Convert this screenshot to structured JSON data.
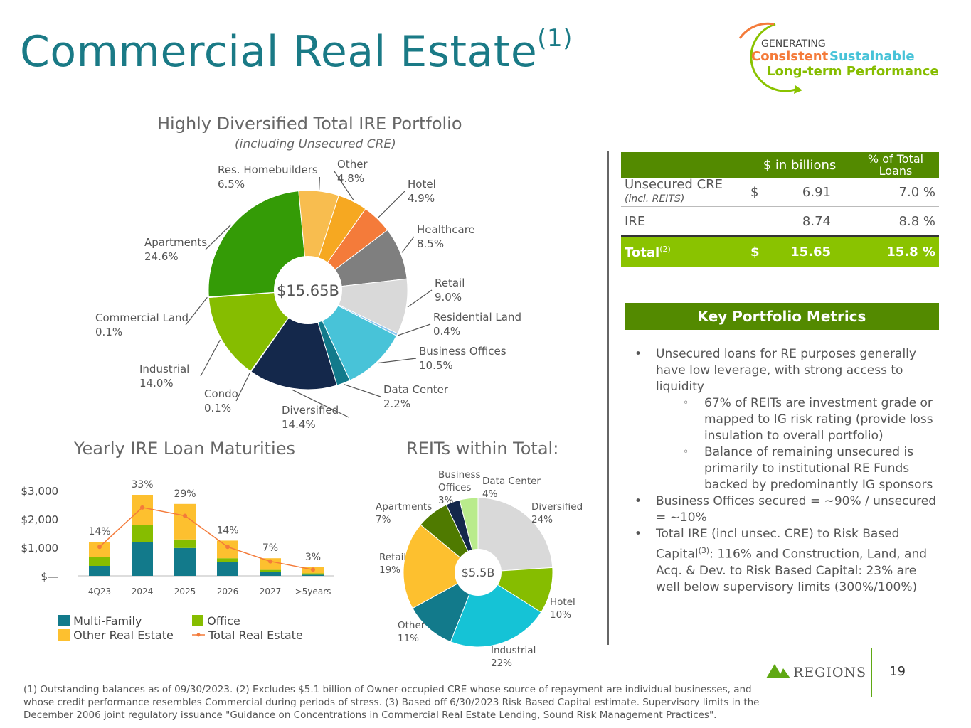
{
  "header": {
    "title": "Commercial Real Estate",
    "title_sup": "(1)",
    "tagline": {
      "line1": "GENERATING",
      "consistent": "Consistent",
      "sustainable": "Sustainable",
      "line3": "Long-term Performance"
    }
  },
  "pie_section": {
    "title": "Highly Diversified Total IRE Portfolio",
    "subtitle": "(including Unsecured CRE)"
  },
  "bar_section": {
    "title": "Yearly IRE Loan Maturities"
  },
  "reit_section": {
    "title": "REITs within Total:"
  },
  "chart_data": [
    {
      "type": "pie",
      "center_label": "$15.65B",
      "colors_hint": "donut",
      "slices": [
        {
          "label": "Other",
          "value": 4.8,
          "display": "4.8%",
          "color": "#f6a821"
        },
        {
          "label": "Hotel",
          "value": 4.9,
          "display": "4.9%",
          "color": "#f47b3a"
        },
        {
          "label": "Healthcare",
          "value": 8.5,
          "display": "8.5%",
          "color": "#7f7f7f"
        },
        {
          "label": "Retail",
          "value": 9.0,
          "display": "9.0%",
          "color": "#d9d9d9"
        },
        {
          "label": "Residential Land",
          "value": 0.4,
          "display": "0.4%",
          "color": "#89c4f0"
        },
        {
          "label": "Business Offices",
          "value": 10.5,
          "display": "10.5%",
          "color": "#48c3d8"
        },
        {
          "label": "Data Center",
          "value": 2.2,
          "display": "2.2%",
          "color": "#127a8b"
        },
        {
          "label": "Diversified",
          "value": 14.4,
          "display": "14.4%",
          "color": "#14284b"
        },
        {
          "label": "Condo",
          "value": 0.1,
          "display": "0.1%",
          "color": "#8cc63f"
        },
        {
          "label": "Industrial",
          "value": 14.0,
          "display": "14.0%",
          "color": "#86bd00"
        },
        {
          "label": "Commercial Land",
          "value": 0.1,
          "display": "0.1%",
          "color": "#5fa813"
        },
        {
          "label": "Apartments",
          "value": 24.6,
          "display": "24.6%",
          "color": "#349b06"
        },
        {
          "label": "Res. Homebuilders",
          "value": 6.5,
          "display": "6.5%",
          "color": "#f8bd4f"
        }
      ]
    },
    {
      "type": "bar",
      "stacked": true,
      "categories": [
        "4Q23",
        "2024",
        "2025",
        "2026",
        "2027",
        ">5years"
      ],
      "ylim": [
        0,
        3000
      ],
      "yticks": [
        "$—",
        "$1,000",
        "$2,000",
        "$3,000"
      ],
      "series": [
        {
          "name": "Multi-Family",
          "color": "#127a8b",
          "values": [
            350,
            1200,
            980,
            500,
            150,
            40
          ]
        },
        {
          "name": "Office",
          "color": "#86bd00",
          "values": [
            300,
            600,
            300,
            120,
            60,
            50
          ]
        },
        {
          "name": "Other Real Estate",
          "color": "#fdc02f",
          "values": [
            550,
            1050,
            1250,
            620,
            410,
            210
          ]
        }
      ],
      "line": {
        "name": "Total Real Estate",
        "color": "#f47b3a",
        "values": [
          14,
          33,
          29,
          14,
          7,
          3
        ],
        "labels": [
          "14%",
          "33%",
          "29%",
          "14%",
          "7%",
          "3%"
        ]
      }
    },
    {
      "type": "pie",
      "center_label": "$5.5B",
      "slices": [
        {
          "label": "Diversified",
          "value": 24,
          "display": "24%",
          "color": "#d9d9d9"
        },
        {
          "label": "Hotel",
          "value": 10,
          "display": "10%",
          "color": "#86bd00"
        },
        {
          "label": "Industrial",
          "value": 22,
          "display": "22%",
          "color": "#15c3d6"
        },
        {
          "label": "Other",
          "value": 11,
          "display": "11%",
          "color": "#127a8b"
        },
        {
          "label": "Retail",
          "value": 19,
          "display": "19%",
          "color": "#fdc02f"
        },
        {
          "label": "Apartments",
          "value": 7,
          "display": "7%",
          "color": "#4f7a00"
        },
        {
          "label": "Business Offices",
          "value": 3,
          "display": "3%",
          "color": "#14284b"
        },
        {
          "label": "Data Center",
          "value": 4,
          "display": "4%",
          "color": "#b9eb8c"
        }
      ]
    }
  ],
  "table": {
    "headers": [
      "",
      "$ in billions",
      "% of Total Loans"
    ],
    "rows": [
      {
        "name": "Unsecured CRE",
        "sub": "(incl. REITS)",
        "dollar": "$",
        "value": "6.91",
        "pct": "7.0 %"
      },
      {
        "name": "IRE",
        "sub": "",
        "dollar": "",
        "value": "8.74",
        "pct": "8.8 %"
      }
    ],
    "total": {
      "name": "Total",
      "sup": "(2)",
      "dollar": "$",
      "value": "15.65",
      "pct": "15.8 %"
    }
  },
  "metrics": {
    "title": "Key Portfolio Metrics",
    "bullet1": "Unsecured loans for RE purposes generally have low leverage, with strong access to liquidity",
    "sub1": "67% of REITs are investment grade or mapped to IG risk rating (provide loss insulation to overall portfolio)",
    "sub2": "Balance of remaining unsecured is primarily to institutional RE Funds backed by predominantly IG sponsors",
    "bullet2": "Business Offices secured = ~90% / unsecured = ~10%",
    "bullet3_a": "Total IRE (incl unsec. CRE) to Risk Based Capital",
    "bullet3_sup": "(3)",
    "bullet3_b": ": 116% and Construction, Land, and Acq. & Dev. to Risk Based Capital: 23% are well below supervisory limits (300%/100%)"
  },
  "footnote": "(1) Outstanding balances as of 09/30/2023. (2) Excludes $5.1 billion of Owner-occupied CRE whose source of repayment are individual businesses, and whose credit performance resembles Commercial during periods of stress. (3) Based off 6/30/2023 Risk Based Capital estimate. Supervisory limits in the December 2006 joint regulatory issuance \"Guidance on Concentrations in Commercial Real Estate Lending, Sound Risk Management Practices\".",
  "brand": {
    "name": "REGIONS",
    "page": "19"
  }
}
